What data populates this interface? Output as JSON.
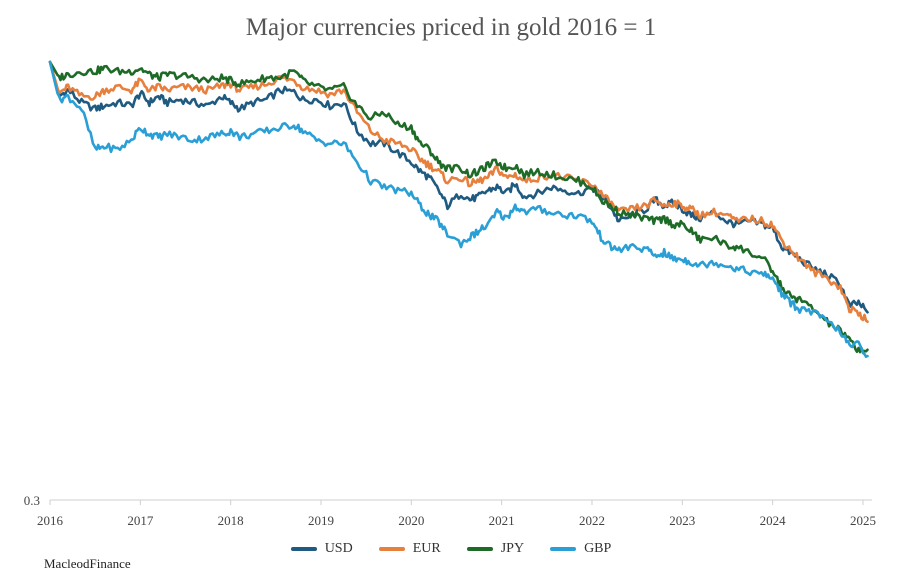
{
  "chart_data": {
    "type": "line",
    "title": "Major currencies priced in gold 2016 = 1",
    "xlabel": "",
    "ylabel": "",
    "xlim": [
      2016,
      2025.1
    ],
    "ylim": [
      0.3,
      1.0
    ],
    "ytick_labels": [
      "0.3"
    ],
    "xtick_labels": [
      "2016",
      "2017",
      "2018",
      "2019",
      "2020",
      "2021",
      "2022",
      "2023",
      "2024",
      "2025"
    ],
    "legend_position": "bottom-center",
    "series": [
      {
        "name": "USD",
        "color": "#1f5a80",
        "x": [
          2016.0,
          2016.1,
          2016.2,
          2016.35,
          2016.5,
          2016.6,
          2016.75,
          2016.9,
          2017.0,
          2017.1,
          2017.2,
          2017.3,
          2017.45,
          2017.6,
          2017.75,
          2017.9,
          2018.0,
          2018.1,
          2018.25,
          2018.4,
          2018.55,
          2018.7,
          2018.8,
          2018.95,
          2019.1,
          2019.25,
          2019.4,
          2019.55,
          2019.7,
          2019.85,
          2020.0,
          2020.1,
          2020.2,
          2020.3,
          2020.4,
          2020.55,
          2020.65,
          2020.75,
          2020.85,
          2020.95,
          2021.05,
          2021.15,
          2021.25,
          2021.4,
          2021.55,
          2021.7,
          2021.85,
          2022.0,
          2022.1,
          2022.2,
          2022.3,
          2022.45,
          2022.6,
          2022.7,
          2022.8,
          2022.9,
          2023.0,
          2023.1,
          2023.2,
          2023.35,
          2023.5,
          2023.6,
          2023.75,
          2023.9,
          2024.0,
          2024.1,
          2024.2,
          2024.3,
          2024.45,
          2024.6,
          2024.75,
          2024.85,
          2024.95,
          2025.05
        ],
        "y": [
          1.0,
          0.945,
          0.955,
          0.935,
          0.925,
          0.93,
          0.935,
          0.93,
          0.95,
          0.935,
          0.945,
          0.935,
          0.94,
          0.935,
          0.93,
          0.945,
          0.935,
          0.925,
          0.935,
          0.94,
          0.955,
          0.952,
          0.94,
          0.94,
          0.93,
          0.935,
          0.89,
          0.87,
          0.87,
          0.855,
          0.84,
          0.825,
          0.815,
          0.795,
          0.77,
          0.79,
          0.78,
          0.785,
          0.795,
          0.8,
          0.79,
          0.805,
          0.785,
          0.79,
          0.8,
          0.795,
          0.79,
          0.8,
          0.785,
          0.77,
          0.745,
          0.755,
          0.765,
          0.78,
          0.77,
          0.775,
          0.765,
          0.755,
          0.75,
          0.76,
          0.745,
          0.74,
          0.745,
          0.74,
          0.735,
          0.705,
          0.695,
          0.685,
          0.67,
          0.66,
          0.645,
          0.61,
          0.615,
          0.6
        ]
      },
      {
        "name": "EUR",
        "color": "#e77f3d",
        "x": [
          2016.0,
          2016.1,
          2016.2,
          2016.35,
          2016.5,
          2016.6,
          2016.75,
          2016.9,
          2017.0,
          2017.1,
          2017.2,
          2017.3,
          2017.45,
          2017.6,
          2017.75,
          2017.9,
          2018.0,
          2018.1,
          2018.25,
          2018.4,
          2018.55,
          2018.7,
          2018.8,
          2018.95,
          2019.1,
          2019.25,
          2019.4,
          2019.55,
          2019.7,
          2019.85,
          2020.0,
          2020.1,
          2020.2,
          2020.3,
          2020.4,
          2020.55,
          2020.65,
          2020.75,
          2020.85,
          2020.95,
          2021.05,
          2021.15,
          2021.25,
          2021.4,
          2021.55,
          2021.7,
          2021.85,
          2022.0,
          2022.1,
          2022.2,
          2022.3,
          2022.45,
          2022.6,
          2022.7,
          2022.8,
          2022.9,
          2023.0,
          2023.1,
          2023.2,
          2023.35,
          2023.5,
          2023.6,
          2023.75,
          2023.9,
          2024.0,
          2024.1,
          2024.2,
          2024.3,
          2024.45,
          2024.6,
          2024.75,
          2024.85,
          2024.95,
          2025.05
        ],
        "y": [
          1.0,
          0.95,
          0.96,
          0.945,
          0.945,
          0.955,
          0.96,
          0.955,
          0.97,
          0.955,
          0.96,
          0.955,
          0.96,
          0.958,
          0.955,
          0.962,
          0.965,
          0.955,
          0.96,
          0.965,
          0.975,
          0.97,
          0.96,
          0.955,
          0.948,
          0.955,
          0.92,
          0.89,
          0.875,
          0.87,
          0.86,
          0.845,
          0.835,
          0.825,
          0.81,
          0.815,
          0.805,
          0.81,
          0.815,
          0.83,
          0.815,
          0.82,
          0.81,
          0.815,
          0.82,
          0.815,
          0.81,
          0.805,
          0.79,
          0.775,
          0.76,
          0.765,
          0.77,
          0.78,
          0.77,
          0.775,
          0.77,
          0.765,
          0.755,
          0.76,
          0.755,
          0.745,
          0.75,
          0.745,
          0.74,
          0.715,
          0.7,
          0.685,
          0.665,
          0.655,
          0.64,
          0.605,
          0.6,
          0.585
        ]
      },
      {
        "name": "JPY",
        "color": "#1e6b28",
        "x": [
          2016.0,
          2016.1,
          2016.2,
          2016.35,
          2016.5,
          2016.6,
          2016.75,
          2016.9,
          2017.0,
          2017.1,
          2017.2,
          2017.3,
          2017.45,
          2017.6,
          2017.75,
          2017.9,
          2018.0,
          2018.1,
          2018.25,
          2018.4,
          2018.55,
          2018.7,
          2018.8,
          2018.95,
          2019.1,
          2019.25,
          2019.4,
          2019.55,
          2019.7,
          2019.85,
          2020.0,
          2020.1,
          2020.2,
          2020.3,
          2020.4,
          2020.55,
          2020.65,
          2020.75,
          2020.85,
          2020.95,
          2021.05,
          2021.15,
          2021.25,
          2021.4,
          2021.55,
          2021.7,
          2021.85,
          2022.0,
          2022.1,
          2022.2,
          2022.3,
          2022.45,
          2022.6,
          2022.7,
          2022.8,
          2022.9,
          2023.0,
          2023.1,
          2023.2,
          2023.35,
          2023.5,
          2023.6,
          2023.75,
          2023.9,
          2024.0,
          2024.1,
          2024.2,
          2024.3,
          2024.45,
          2024.6,
          2024.75,
          2024.85,
          2024.95,
          2025.05
        ],
        "y": [
          1.0,
          0.975,
          0.98,
          0.985,
          0.985,
          0.99,
          0.985,
          0.985,
          0.99,
          0.98,
          0.975,
          0.98,
          0.978,
          0.975,
          0.97,
          0.975,
          0.97,
          0.965,
          0.97,
          0.975,
          0.975,
          0.985,
          0.97,
          0.96,
          0.955,
          0.96,
          0.93,
          0.91,
          0.92,
          0.9,
          0.895,
          0.87,
          0.86,
          0.84,
          0.83,
          0.83,
          0.82,
          0.825,
          0.835,
          0.84,
          0.83,
          0.835,
          0.82,
          0.825,
          0.82,
          0.815,
          0.81,
          0.8,
          0.78,
          0.77,
          0.76,
          0.755,
          0.75,
          0.745,
          0.75,
          0.74,
          0.74,
          0.73,
          0.715,
          0.72,
          0.705,
          0.705,
          0.695,
          0.685,
          0.665,
          0.64,
          0.625,
          0.62,
          0.605,
          0.585,
          0.57,
          0.555,
          0.54,
          0.54
        ]
      },
      {
        "name": "GBP",
        "color": "#2a9fd6",
        "x": [
          2016.0,
          2016.1,
          2016.2,
          2016.35,
          2016.5,
          2016.6,
          2016.75,
          2016.9,
          2017.0,
          2017.1,
          2017.2,
          2017.3,
          2017.45,
          2017.6,
          2017.75,
          2017.9,
          2018.0,
          2018.1,
          2018.25,
          2018.4,
          2018.55,
          2018.7,
          2018.8,
          2018.95,
          2019.1,
          2019.25,
          2019.4,
          2019.55,
          2019.7,
          2019.85,
          2020.0,
          2020.1,
          2020.2,
          2020.3,
          2020.4,
          2020.55,
          2020.65,
          2020.75,
          2020.85,
          2020.95,
          2021.05,
          2021.15,
          2021.25,
          2021.4,
          2021.55,
          2021.7,
          2021.85,
          2022.0,
          2022.1,
          2022.2,
          2022.3,
          2022.45,
          2022.6,
          2022.7,
          2022.8,
          2022.9,
          2023.0,
          2023.1,
          2023.2,
          2023.35,
          2023.5,
          2023.6,
          2023.75,
          2023.9,
          2024.0,
          2024.1,
          2024.2,
          2024.3,
          2024.45,
          2024.6,
          2024.75,
          2024.85,
          2024.95,
          2025.05
        ],
        "y": [
          1.0,
          0.94,
          0.945,
          0.925,
          0.86,
          0.865,
          0.86,
          0.875,
          0.895,
          0.885,
          0.88,
          0.885,
          0.88,
          0.875,
          0.88,
          0.885,
          0.89,
          0.88,
          0.885,
          0.89,
          0.895,
          0.9,
          0.89,
          0.875,
          0.87,
          0.87,
          0.84,
          0.81,
          0.8,
          0.795,
          0.79,
          0.77,
          0.755,
          0.745,
          0.725,
          0.71,
          0.72,
          0.73,
          0.74,
          0.76,
          0.75,
          0.77,
          0.76,
          0.765,
          0.76,
          0.755,
          0.755,
          0.745,
          0.72,
          0.705,
          0.7,
          0.705,
          0.7,
          0.69,
          0.695,
          0.685,
          0.685,
          0.68,
          0.675,
          0.68,
          0.675,
          0.67,
          0.665,
          0.66,
          0.655,
          0.63,
          0.615,
          0.605,
          0.6,
          0.585,
          0.57,
          0.545,
          0.55,
          0.53
        ]
      }
    ]
  },
  "legend": {
    "items": [
      "USD",
      "EUR",
      "JPY",
      "GBP"
    ]
  },
  "footer": {
    "brand": "MacleodFinance"
  }
}
